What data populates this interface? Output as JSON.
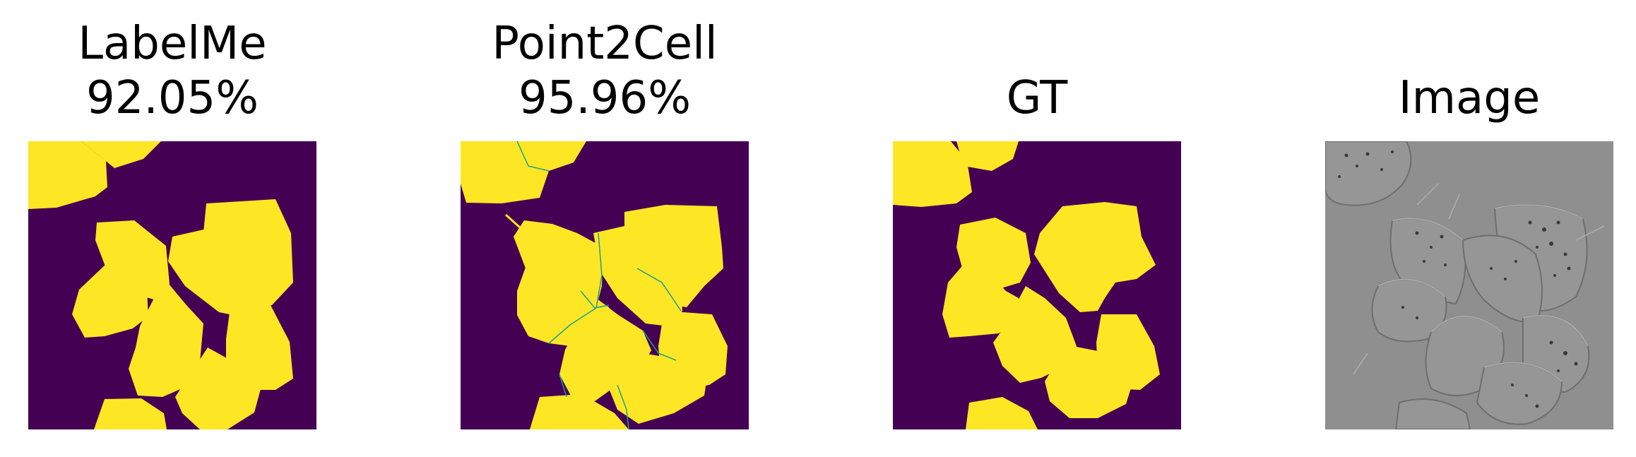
{
  "figure": {
    "panels": [
      {
        "id": "labelme",
        "title": "LabelMe",
        "score": "92.05%"
      },
      {
        "id": "point2cell",
        "title": "Point2Cell",
        "score": "95.96%"
      },
      {
        "id": "gt",
        "title": "GT",
        "score": ""
      },
      {
        "id": "image",
        "title": "Image",
        "score": ""
      }
    ]
  },
  "colors": {
    "background_mask": "#440154",
    "foreground_mask": "#fde725",
    "boundary_line": "#1f9e89",
    "micrograph_base": "#8f8f8f"
  }
}
